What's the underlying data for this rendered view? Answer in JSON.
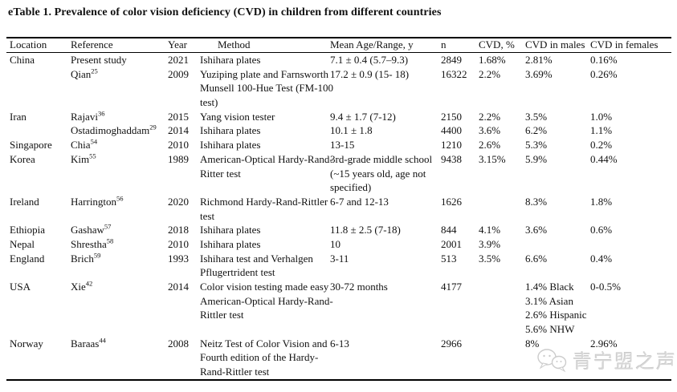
{
  "title": "eTable 1. Prevalence of color vision deficiency (CVD) in children from different countries",
  "watermark": {
    "text": "青宁盟之声",
    "icon": "chat-bubbles-icon"
  },
  "colors": {
    "background": "#ffffff",
    "text": "#111111",
    "rule": "#000000",
    "watermark_gray": "#d7d7d7"
  },
  "table": {
    "headers": [
      "Location",
      "Reference",
      "Year",
      "Method",
      "Mean Age/Range, y",
      "n",
      "CVD, %",
      "CVD in males",
      "CVD in females"
    ],
    "rows": [
      {
        "location": "China",
        "reference": "Present study",
        "ref_sup": "",
        "year": "2021",
        "method": [
          "Ishihara plates"
        ],
        "age": [
          "7.1 ± 0.4 (5.7–9.3)"
        ],
        "n": "2849",
        "cvd": "1.68%",
        "males": [
          "2.81%"
        ],
        "females": "0.16%"
      },
      {
        "location": "",
        "reference": "Qian",
        "ref_sup": "25",
        "year": "2009",
        "method": [
          "Yuziping plate and Farnsworth",
          "Munsell 100-Hue Test (FM-100",
          "test)"
        ],
        "age": [
          "17.2 ± 0.9 (15- 18)"
        ],
        "n": "16322",
        "cvd": "2.2%",
        "males": [
          "3.69%"
        ],
        "females": "0.26%"
      },
      {
        "location": "Iran",
        "reference": "Rajavi",
        "ref_sup": "36",
        "year": "2015",
        "method": [
          "Yang vision tester"
        ],
        "age": [
          "9.4 ± 1.7 (7-12)"
        ],
        "n": "2150",
        "cvd": "2.2%",
        "males": [
          "3.5%"
        ],
        "females": "1.0%"
      },
      {
        "location": "",
        "reference": "Ostadimoghaddam",
        "ref_sup": "29",
        "year": "2014",
        "method": [
          "Ishihara plates"
        ],
        "age": [
          "10.1 ± 1.8"
        ],
        "n": "4400",
        "cvd": "3.6%",
        "males": [
          "6.2%"
        ],
        "females": "1.1%"
      },
      {
        "location": "Singapore",
        "reference": "Chia",
        "ref_sup": "54",
        "year": "2010",
        "method": [
          "Ishihara plates"
        ],
        "age": [
          "13-15"
        ],
        "n": "1210",
        "cvd": "2.6%",
        "males": [
          "5.3%"
        ],
        "females": "0.2%"
      },
      {
        "location": "Korea",
        "reference": "Kim",
        "ref_sup": "55",
        "year": "1989",
        "method": [
          "American-Optical Hardy-Rand-",
          "Ritter test"
        ],
        "age": [
          "3rd-grade middle school",
          "(~15 years old, age not",
          "specified)"
        ],
        "n": "9438",
        "cvd": "3.15%",
        "males": [
          "5.9%"
        ],
        "females": "0.44%"
      },
      {
        "location": "Ireland",
        "reference": "Harrington",
        "ref_sup": "56",
        "year": "2020",
        "method": [
          "Richmond Hardy-Rand-Rittler",
          "test"
        ],
        "age": [
          "6-7 and 12-13"
        ],
        "n": "1626",
        "cvd": "",
        "males": [
          "8.3%"
        ],
        "females": "1.8%"
      },
      {
        "location": "Ethiopia",
        "reference": "Gashaw",
        "ref_sup": "57",
        "year": "2018",
        "method": [
          "Ishihara plates"
        ],
        "age": [
          "11.8 ± 2.5 (7-18)"
        ],
        "n": "844",
        "cvd": "4.1%",
        "males": [
          "3.6%"
        ],
        "females": "0.6%"
      },
      {
        "location": "Nepal",
        "reference": "Shrestha",
        "ref_sup": "58",
        "year": "2010",
        "method": [
          "Ishihara plates"
        ],
        "age": [
          "10"
        ],
        "n": "2001",
        "cvd": "3.9%",
        "males": [],
        "females": ""
      },
      {
        "location": "England",
        "reference": "Brich",
        "ref_sup": "59",
        "year": "1993",
        "method": [
          "Ishihara test and Verhalgen",
          "Pflugertrident test"
        ],
        "age": [
          "3-11"
        ],
        "n": "513",
        "cvd": "3.5%",
        "males": [
          "6.6%"
        ],
        "females": "0.4%"
      },
      {
        "location": "USA",
        "reference": "Xie",
        "ref_sup": "42",
        "year": "2014",
        "method": [
          "Color vision testing made easy",
          "American-Optical Hardy-Rand-",
          "Rittler test"
        ],
        "age": [
          "30-72 months"
        ],
        "n": "4177",
        "cvd": "",
        "males": [
          "1.4% Black",
          "3.1% Asian",
          "2.6% Hispanic",
          "5.6% NHW"
        ],
        "females": "0-0.5%"
      },
      {
        "location": "Norway",
        "reference": "Baraas",
        "ref_sup": "44",
        "year": "2008",
        "method": [
          "Neitz Test of Color Vision and",
          "Fourth edition of the Hardy-",
          "Rand-Rittler test"
        ],
        "age": [
          "6-13"
        ],
        "n": "2966",
        "cvd": "",
        "males": [
          "8%"
        ],
        "females": "2.96%"
      }
    ]
  }
}
